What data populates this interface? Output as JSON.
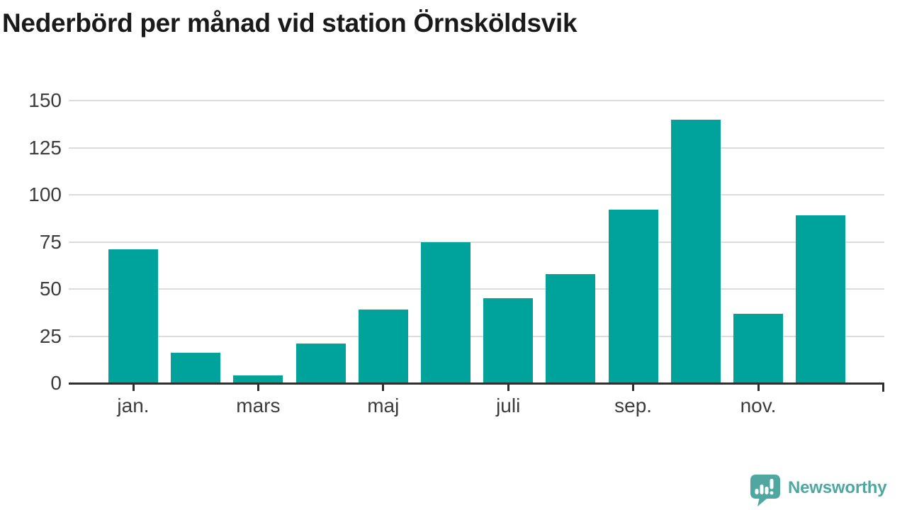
{
  "chart_data": {
    "type": "bar",
    "title": "Nederbörd per månad vid station Örnsköldsvik",
    "values": [
      71,
      16,
      4,
      21,
      39,
      75,
      45,
      58,
      92,
      140,
      37,
      89
    ],
    "n_bars": 12,
    "x_tick_labels": [
      "jan.",
      "mars",
      "maj",
      "juli",
      "sep.",
      "nov."
    ],
    "x_tick_slots": [
      0,
      2,
      4,
      6,
      8,
      10
    ],
    "y_ticks": [
      0,
      25,
      50,
      75,
      100,
      125,
      150
    ],
    "ylim": [
      0,
      150
    ],
    "xlabel": "",
    "ylabel": "",
    "grid": "horizontal",
    "legend": "none",
    "bar_color": "#00a39b"
  },
  "colors": {
    "background": "#ffffff",
    "bar": "#00a39b",
    "title": "#1a1a1a",
    "axis_labels": "#3c3c3c",
    "gridline": "#dcdcdc",
    "axis_line": "#2f2f2f",
    "logo": "#4ea7a0"
  },
  "footer": {
    "brand": "Newsworthy"
  }
}
